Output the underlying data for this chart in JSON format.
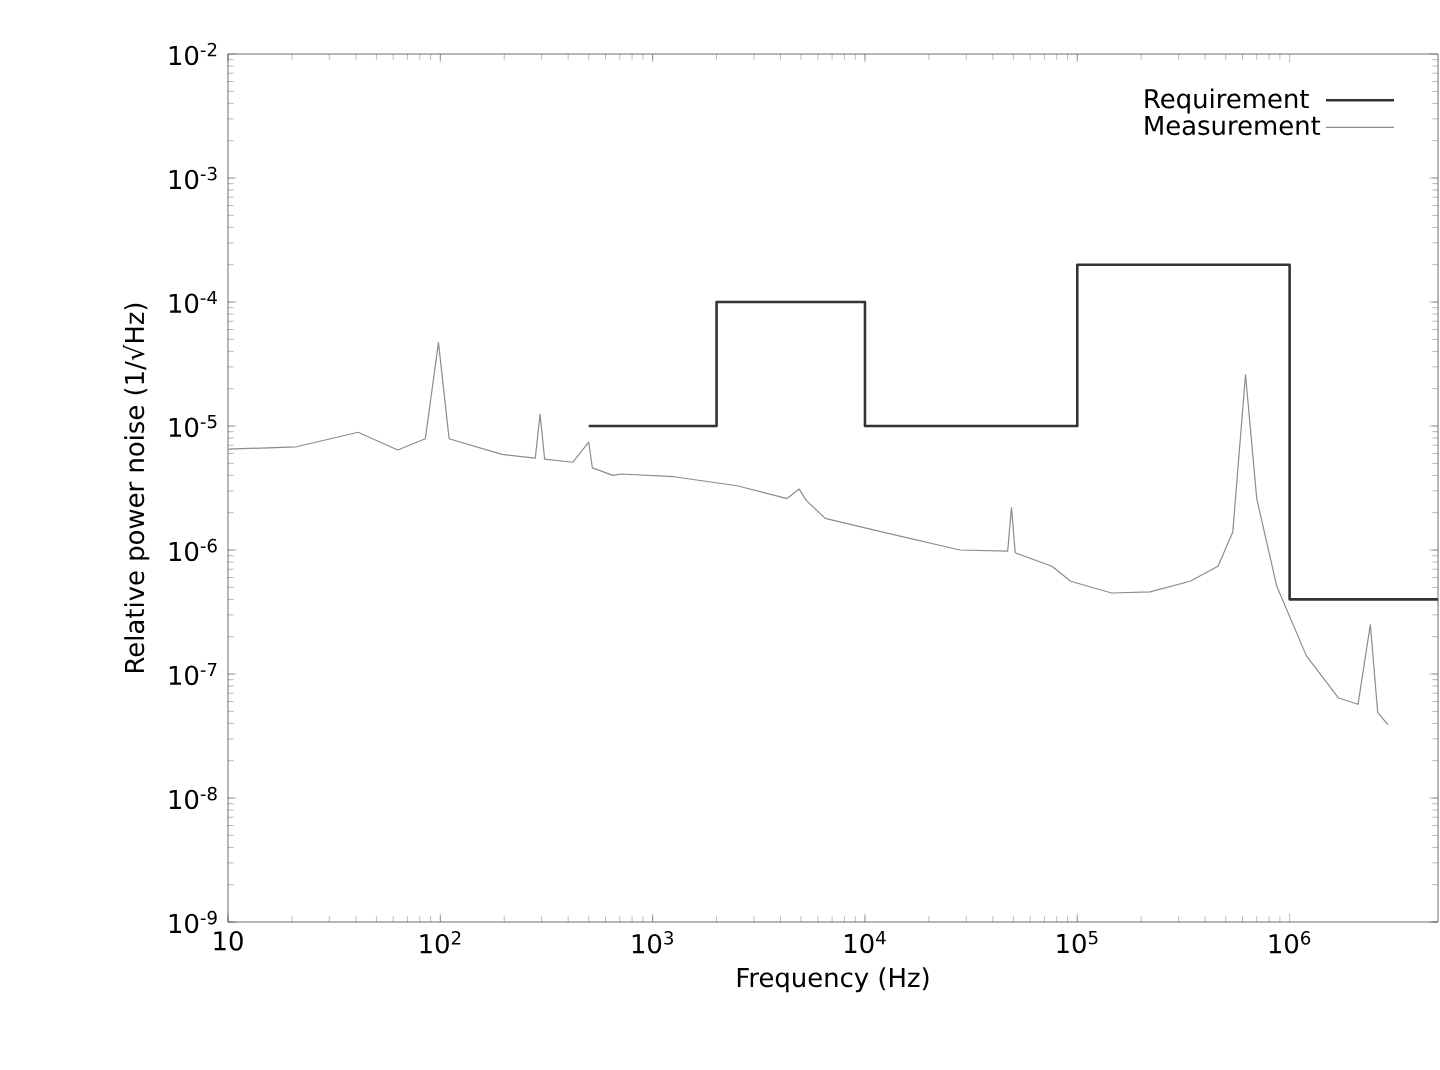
{
  "chart_data": {
    "type": "line",
    "xlabel": "Frequency (Hz)",
    "ylabel": "Relative power noise (1/√Hz)",
    "log": "xy",
    "legend": "top right",
    "marker": "none",
    "line_style": "solid",
    "xlim": [
      10,
      5000000
    ],
    "ylim": [
      1e-09,
      0.01
    ],
    "xticks": [
      10,
      {
        "value": 100,
        "label": "10$^{2}$"
      },
      {
        "value": 1000,
        "label": "10$^{3}$"
      },
      {
        "value": 10000,
        "label": "10$^{4}$"
      },
      {
        "value": 100000,
        "label": "10$^{5}$"
      },
      {
        "value": 1000000,
        "label": "10$^{6}$"
      }
    ],
    "yticks": [
      {
        "value": 1e-09,
        "label": "10$^{-9}$"
      },
      {
        "value": 1e-08,
        "label": "10$^{-8}$"
      },
      {
        "value": 1e-07,
        "label": "10$^{-7}$"
      },
      {
        "value": 1e-06,
        "label": "10$^{-6}$"
      },
      {
        "value": 1e-05,
        "label": "10$^{-5}$"
      },
      {
        "value": 0.0001,
        "label": "10$^{-4}$"
      },
      {
        "value": 0.001,
        "label": "10$^{-3}$"
      },
      {
        "value": 0.01,
        "label": "10$^{-2}$"
      }
    ],
    "series": [
      {
        "name": "Requirement",
        "type": "step",
        "color": "#333333",
        "x": [
          500,
          2000,
          10000,
          100000,
          1000000,
          5000000
        ],
        "values": [
          1e-05,
          0.0001,
          1e-05,
          0.0002,
          4e-07,
          4e-07
        ]
      },
      {
        "name": "Measurement",
        "color": "#8c8c8c",
        "x": [
          10,
          21,
          41,
          63,
          85,
          98,
          110,
          195,
          280,
          295,
          310,
          420,
          500,
          520,
          650,
          710,
          1260,
          2500,
          4300,
          4900,
          5300,
          6500,
          12000,
          28000,
          47000,
          49000,
          51000,
          76000,
          93000,
          145000,
          220000,
          340000,
          460000,
          540000,
          620000,
          700000,
          870000,
          1200000,
          1700000,
          2100000,
          2400000,
          2600000,
          2900000
        ],
        "values": [
          6.5e-06,
          6.8e-06,
          8.9e-06,
          6.4e-06,
          7.9e-06,
          4.7e-05,
          7.9e-06,
          5.9e-06,
          5.5e-06,
          1.25e-05,
          5.4e-06,
          5.1e-06,
          7.4e-06,
          4.6e-06,
          4e-06,
          4.1e-06,
          3.9e-06,
          3.3e-06,
          2.6e-06,
          3.1e-06,
          2.5e-06,
          1.8e-06,
          1.4e-06,
          1e-06,
          9.8e-07,
          2.2e-06,
          9.5e-07,
          7.4e-07,
          5.6e-07,
          4.5e-07,
          4.6e-07,
          5.6e-07,
          7.4e-07,
          1.4e-06,
          2.6e-05,
          2.6e-06,
          5.1e-07,
          1.4e-07,
          6.4e-08,
          5.7e-08,
          2.5e-07,
          4.9e-08,
          3.9e-08
        ]
      }
    ]
  }
}
